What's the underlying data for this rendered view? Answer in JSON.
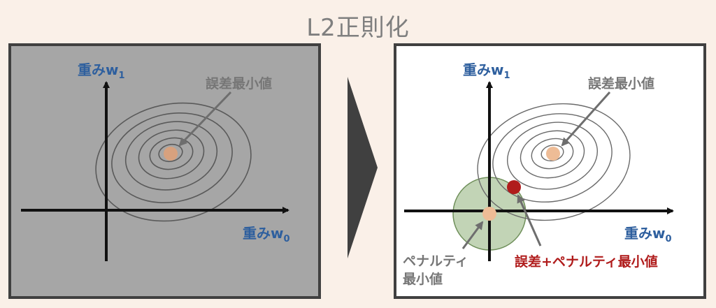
{
  "title": "L2正則化",
  "left_panel": {
    "axis_w1_label": "重みw",
    "axis_w1_sub": "1",
    "axis_w0_label": "重みw",
    "axis_w0_sub": "0",
    "error_min_label": "誤差最小値"
  },
  "right_panel": {
    "axis_w1_label": "重みw",
    "axis_w1_sub": "1",
    "axis_w0_label": "重みw",
    "axis_w0_sub": "0",
    "error_min_label": "誤差最小値",
    "penalty_min_label_line1": "ペナルティ",
    "penalty_min_label_line2": "最小値",
    "combined_min_label": "誤差+ペナルティ最小値"
  },
  "colors": {
    "background": "#faf0e8",
    "left_panel_fill": "#a6a6a6",
    "right_panel_fill": "#ffffff",
    "frame": "#404040",
    "axis_label_blue": "#2e5f9e",
    "error_min_point": "#d7a17e",
    "penalty_circle": "#8fb07a",
    "combined_min_point": "#b01c1c",
    "combined_label": "#b01c1c",
    "gray_label": "#767676"
  }
}
